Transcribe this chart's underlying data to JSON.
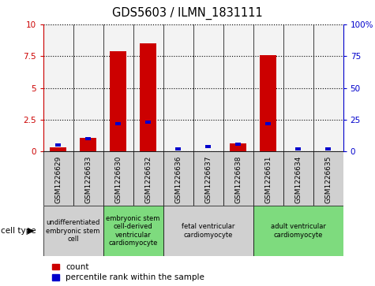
{
  "title": "GDS5603 / ILMN_1831111",
  "samples": [
    "GSM1226629",
    "GSM1226633",
    "GSM1226630",
    "GSM1226632",
    "GSM1226636",
    "GSM1226637",
    "GSM1226638",
    "GSM1226631",
    "GSM1226634",
    "GSM1226635"
  ],
  "count_values": [
    0.32,
    1.05,
    7.9,
    8.5,
    0.04,
    0.04,
    0.65,
    7.6,
    0.04,
    0.04
  ],
  "percentile_values": [
    5,
    10,
    22,
    23,
    2,
    4,
    6,
    22,
    2,
    2
  ],
  "ylim_left": [
    0,
    10
  ],
  "ylim_right": [
    0,
    100
  ],
  "yticks_left": [
    0,
    2.5,
    5,
    7.5,
    10
  ],
  "ytick_labels_left": [
    "0",
    "2.5",
    "5",
    "7.5",
    "10"
  ],
  "yticks_right": [
    0,
    25,
    50,
    75,
    100
  ],
  "ytick_labels_right": [
    "0",
    "25",
    "50",
    "75",
    "100%"
  ],
  "left_axis_color": "#cc0000",
  "right_axis_color": "#0000cc",
  "bar_color_red": "#cc0000",
  "bar_color_blue": "#0000cc",
  "cell_type_groups": [
    {
      "label": "undifferentiated\nembryonic stem\ncell",
      "start": 0,
      "end": 2,
      "color": "#d0d0d0"
    },
    {
      "label": "embryonic stem\ncell-derived\nventricular\ncardiomyocyte",
      "start": 2,
      "end": 4,
      "color": "#7edb7e"
    },
    {
      "label": "fetal ventricular\ncardiomyocyte",
      "start": 4,
      "end": 7,
      "color": "#d0d0d0"
    },
    {
      "label": "adult ventricular\ncardiomyocyte",
      "start": 7,
      "end": 10,
      "color": "#7edb7e"
    }
  ],
  "legend_count_label": "count",
  "legend_percentile_label": "percentile rank within the sample",
  "cell_type_label": "cell type",
  "sample_box_color": "#d0d0d0"
}
